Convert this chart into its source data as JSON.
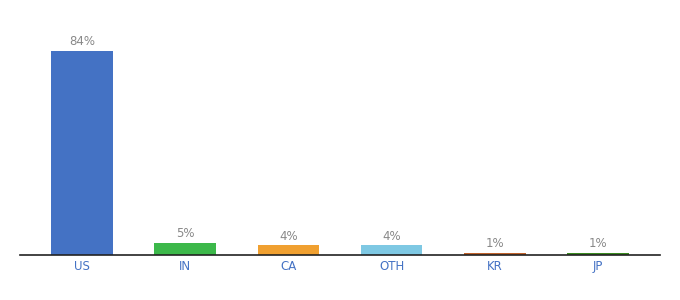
{
  "categories": [
    "US",
    "IN",
    "CA",
    "OTH",
    "KR",
    "JP"
  ],
  "values": [
    84,
    5,
    4,
    4,
    1,
    1
  ],
  "labels": [
    "84%",
    "5%",
    "4%",
    "4%",
    "1%",
    "1%"
  ],
  "bar_colors": [
    "#4472c4",
    "#3cb84a",
    "#f0a030",
    "#7ec8e3",
    "#c0622a",
    "#3a8a20"
  ],
  "background_color": "#ffffff",
  "ylim": [
    0,
    95
  ],
  "bar_width": 0.6,
  "label_fontsize": 8.5,
  "tick_fontsize": 8.5,
  "tick_color": "#4472c4",
  "label_color": "#888888"
}
